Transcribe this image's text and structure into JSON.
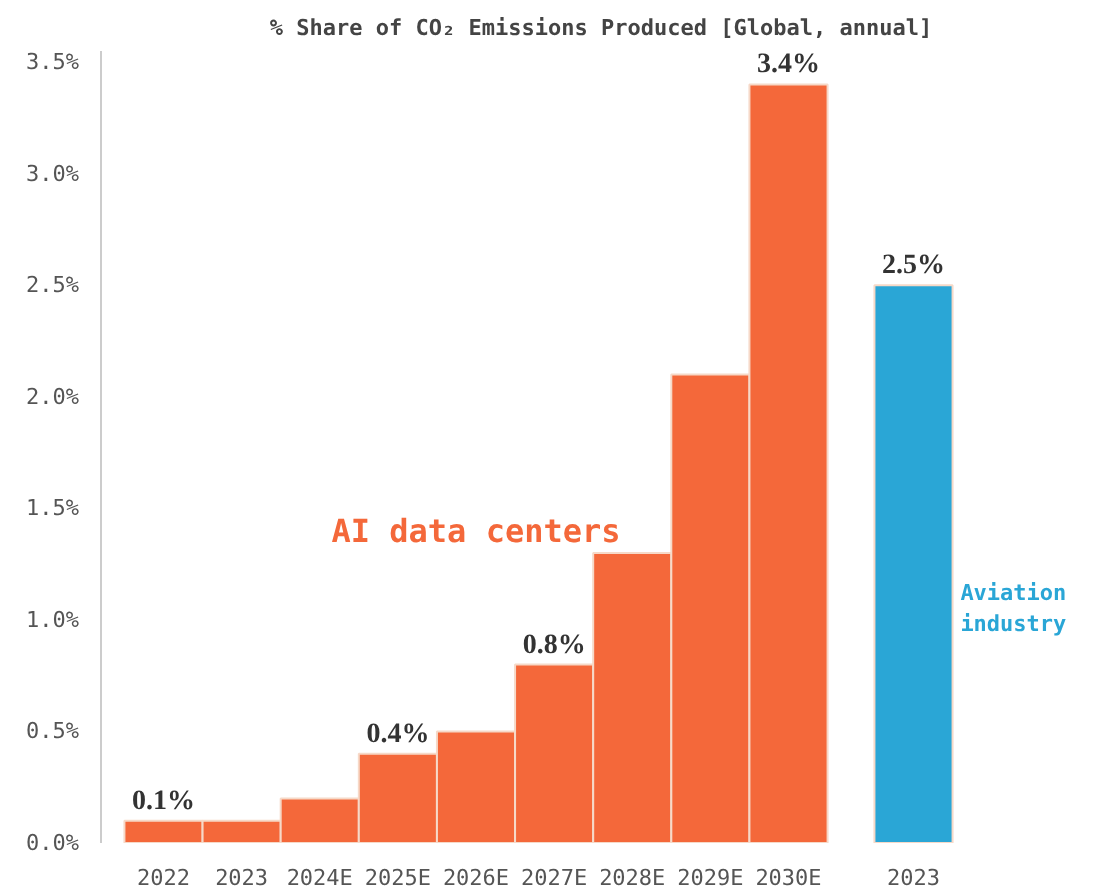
{
  "chart_data": {
    "type": "bar",
    "title": "% Share of CO₂ Emissions Produced [Global, annual]",
    "categories": [
      "2022",
      "2023",
      "2024E",
      "2025E",
      "2026E",
      "2027E",
      "2028E",
      "2029E",
      "2030E",
      "2023"
    ],
    "series": [
      {
        "name": "AI data centers",
        "color": "#f4683a",
        "values": [
          0.1,
          0.1,
          0.2,
          0.4,
          0.5,
          0.8,
          1.3,
          2.1,
          3.4,
          null
        ],
        "value_labels": [
          "0.1%",
          null,
          null,
          "0.4%",
          null,
          "0.8%",
          null,
          null,
          "3.4%",
          null
        ]
      },
      {
        "name": "Aviation industry",
        "color": "#2aa6d6",
        "values": [
          null,
          null,
          null,
          null,
          null,
          null,
          null,
          null,
          null,
          2.5
        ],
        "value_labels": [
          null,
          null,
          null,
          null,
          null,
          null,
          null,
          null,
          null,
          "2.5%"
        ]
      }
    ],
    "ylim": [
      0,
      3.55
    ],
    "yticks": [
      {
        "value": 0,
        "label": "0.0%"
      },
      {
        "value": 0.5,
        "label": "0.5%"
      },
      {
        "value": 1,
        "label": "1.0%"
      },
      {
        "value": 1.5,
        "label": "1.5%"
      },
      {
        "value": 2,
        "label": "2.0%"
      },
      {
        "value": 2.5,
        "label": "2.5%"
      },
      {
        "value": 3,
        "label": "3.0%"
      },
      {
        "value": 3.5,
        "label": "3.5%"
      }
    ],
    "grid": false,
    "legend": false
  }
}
